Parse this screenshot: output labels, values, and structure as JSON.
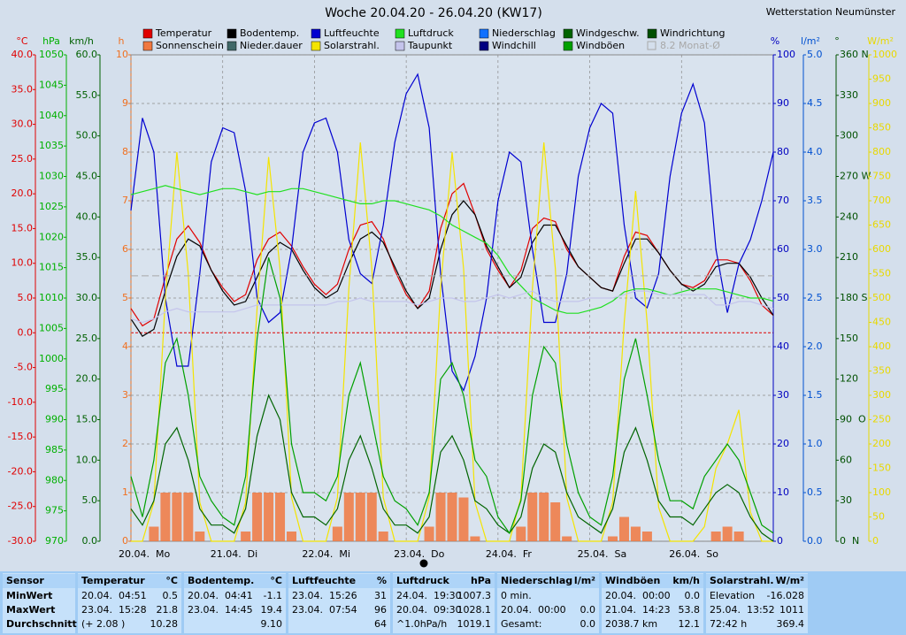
{
  "chart_data": {
    "type": "line",
    "title": "Woche 20.04.20 - 26.04.20 (KW17)",
    "subtitle": "Wetterstation Neumünster",
    "xlim": [
      0,
      168
    ],
    "xticks": [
      {
        "value": 0,
        "label": "20.04.  Mo"
      },
      {
        "value": 24,
        "label": "21.04.  Di"
      },
      {
        "value": 48,
        "label": "22.04.  Mi"
      },
      {
        "value": 72,
        "label": "23.04.  Do"
      },
      {
        "value": 96,
        "label": "24.04.  Fr"
      },
      {
        "value": 120,
        "label": "25.04.  Sa"
      },
      {
        "value": 144,
        "label": "26.04.  So"
      }
    ],
    "grid": true,
    "axes": [
      {
        "label": "°C",
        "color": "#e00000",
        "side": "left",
        "lim": [
          -30,
          40
        ],
        "ticks": [
          {
            "value": 40,
            "label": "40.0"
          },
          {
            "value": 35,
            "label": "35.0"
          },
          {
            "value": 30,
            "label": "30.0"
          },
          {
            "value": 25,
            "label": "25.0"
          },
          {
            "value": 20,
            "label": "20.0"
          },
          {
            "value": 15,
            "label": "15.0"
          },
          {
            "value": 10,
            "label": "10.0"
          },
          {
            "value": 5,
            "label": "5.0"
          },
          {
            "value": 0,
            "label": "0.0"
          },
          {
            "value": -5,
            "label": "-5.0"
          },
          {
            "value": -10,
            "label": "-10.0"
          },
          {
            "value": -15,
            "label": "-15.0"
          },
          {
            "value": -20,
            "label": "-20.0"
          },
          {
            "value": -25,
            "label": "-25.0"
          },
          {
            "value": -30,
            "label": "-30.0"
          }
        ]
      },
      {
        "label": "hPa",
        "color": "#00b000",
        "side": "left",
        "lim": [
          970,
          1050
        ],
        "ticks": [
          1050,
          1045,
          1040,
          1035,
          1030,
          1025,
          1020,
          1015,
          1010,
          1005,
          1000,
          995,
          990,
          985,
          980,
          975,
          970
        ]
      },
      {
        "label": "km/h",
        "color": "#006000",
        "side": "left",
        "lim": [
          0,
          60
        ],
        "ticks": [
          {
            "value": 60,
            "label": "60.0"
          },
          {
            "value": 55,
            "label": "55.0"
          },
          {
            "value": 50,
            "label": "50.0"
          },
          {
            "value": 45,
            "label": "45.0"
          },
          {
            "value": 40,
            "label": "40.0"
          },
          {
            "value": 35,
            "label": "35.0"
          },
          {
            "value": 30,
            "label": "30.0"
          },
          {
            "value": 25,
            "label": "25.0"
          },
          {
            "value": 20,
            "label": "20.0"
          },
          {
            "value": 15,
            "label": "15.0"
          },
          {
            "value": 10,
            "label": "10.0"
          },
          {
            "value": 5,
            "label": "5.0"
          },
          {
            "value": 0,
            "label": "0.0"
          }
        ]
      },
      {
        "label": "h",
        "color": "#f07020",
        "side": "left",
        "lim": [
          0,
          10
        ],
        "ticks": [
          10,
          9,
          8,
          7,
          6,
          5,
          4,
          3,
          2,
          1,
          0
        ]
      },
      {
        "label": "%",
        "color": "#0000c0",
        "side": "right",
        "lim": [
          0,
          100
        ],
        "ticks": [
          100,
          90,
          80,
          70,
          60,
          50,
          40,
          30,
          20,
          10,
          0
        ]
      },
      {
        "label": "l/m²",
        "color": "#0050d0",
        "side": "right",
        "lim": [
          0,
          5
        ],
        "ticks": [
          {
            "value": 5,
            "label": "5.0"
          },
          {
            "value": 4.5,
            "label": "4.5"
          },
          {
            "value": 4,
            "label": "4.0"
          },
          {
            "value": 3.5,
            "label": "3.5"
          },
          {
            "value": 3,
            "label": "3.0"
          },
          {
            "value": 2.5,
            "label": "2.5"
          },
          {
            "value": 2,
            "label": "2.0"
          },
          {
            "value": 1.5,
            "label": "1.5"
          },
          {
            "value": 1,
            "label": "1.0"
          },
          {
            "value": 0.5,
            "label": "0.5"
          },
          {
            "value": 0,
            "label": "0.0"
          }
        ]
      },
      {
        "label": "°",
        "color": "#005000",
        "side": "right",
        "lim": [
          0,
          360
        ],
        "ticks": [
          {
            "value": 360,
            "label": "360 N"
          },
          330,
          300,
          {
            "value": 270,
            "label": "270 W"
          },
          240,
          210,
          {
            "value": 180,
            "label": "180 S"
          },
          150,
          120,
          {
            "value": 90,
            "label": "90  O"
          },
          60,
          30,
          {
            "value": 0,
            "label": "0  N"
          }
        ]
      },
      {
        "label": "W/m²",
        "color": "#e8d800",
        "side": "right",
        "lim": [
          0,
          1000
        ],
        "ticks": [
          1000,
          950,
          900,
          850,
          800,
          750,
          700,
          650,
          600,
          550,
          500,
          450,
          400,
          350,
          300,
          250,
          200,
          150,
          100,
          50,
          0
        ]
      }
    ],
    "x": [
      0,
      3,
      6,
      9,
      12,
      15,
      18,
      21,
      24,
      27,
      30,
      33,
      36,
      39,
      42,
      45,
      48,
      51,
      54,
      57,
      60,
      63,
      66,
      69,
      72,
      75,
      78,
      81,
      84,
      87,
      90,
      93,
      96,
      99,
      102,
      105,
      108,
      111,
      114,
      117,
      120,
      123,
      126,
      129,
      132,
      135,
      138,
      141,
      144,
      147,
      150,
      153,
      156,
      159,
      162,
      165,
      168
    ],
    "series": [
      {
        "name": "Temperatur",
        "color": "#e00000",
        "axis": 0,
        "style": "line",
        "values": [
          3.5,
          1.0,
          2.0,
          8.0,
          13.5,
          15.4,
          13.0,
          9.0,
          6.5,
          4.5,
          5.5,
          10.5,
          13.5,
          14.5,
          12.5,
          9.5,
          7.0,
          5.5,
          7.0,
          12.0,
          15.5,
          16.0,
          13.5,
          9.0,
          5.5,
          3.5,
          6.0,
          15.0,
          20.0,
          21.5,
          17.0,
          12.0,
          9.0,
          6.5,
          9.0,
          15.0,
          16.5,
          16.0,
          12.0,
          9.5,
          8.0,
          6.5,
          6.0,
          11.0,
          14.5,
          14.0,
          11.5,
          9.0,
          7.0,
          6.5,
          7.5,
          10.5,
          10.5,
          10.0,
          7.5,
          4.0,
          2.5
        ]
      },
      {
        "name": "Sonnenschein",
        "color": "#f07840",
        "axis": 3,
        "style": "bar",
        "values": [
          0,
          0,
          0.3,
          1,
          1,
          1,
          0.2,
          0,
          0,
          0,
          0.2,
          1,
          1,
          1,
          0.2,
          0,
          0,
          0,
          0.3,
          1,
          1,
          1,
          0.2,
          0,
          0,
          0,
          0.3,
          1,
          1,
          0.9,
          0.1,
          0,
          0,
          0,
          0.3,
          1,
          1,
          0.8,
          0.1,
          0,
          0,
          0,
          0.1,
          0.5,
          0.3,
          0.2,
          0,
          0,
          0,
          0,
          0,
          0.2,
          0.3,
          0.2,
          0,
          0,
          0
        ]
      },
      {
        "name": "Bodentemp.",
        "color": "#000000",
        "axis": 0,
        "style": "line",
        "values": [
          2.0,
          -0.5,
          0.5,
          6,
          11,
          13.5,
          12.5,
          9,
          6,
          4,
          4.5,
          8,
          11.5,
          13,
          12,
          9,
          6.5,
          5,
          6,
          10,
          13.5,
          14.5,
          13,
          9.5,
          6,
          3.5,
          5,
          12,
          17,
          19,
          17,
          12.5,
          9.5,
          6.5,
          8,
          13,
          15.5,
          15.5,
          12.5,
          9.5,
          8,
          6.5,
          6,
          10,
          13.5,
          13.5,
          11.5,
          9,
          7,
          6,
          7,
          9.5,
          10,
          10,
          8,
          5,
          2.5
        ]
      },
      {
        "name": "Nieder.dauer",
        "color": "#406868"
      },
      {
        "name": "Luftfeuchte",
        "color": "#0000d0",
        "axis": 4,
        "style": "line",
        "values": [
          68,
          87,
          80,
          50,
          36,
          36,
          55,
          78,
          85,
          84,
          72,
          50,
          45,
          47,
          60,
          80,
          86,
          87,
          80,
          62,
          55,
          53,
          65,
          82,
          92,
          96,
          85,
          55,
          35,
          31,
          38,
          50,
          70,
          80,
          78,
          60,
          45,
          45,
          55,
          75,
          85,
          90,
          88,
          65,
          50,
          48,
          55,
          75,
          88,
          94,
          86,
          60,
          47,
          57,
          62,
          70,
          80
        ]
      },
      {
        "name": "Solarstrahl.",
        "color": "#f4e400",
        "axis": 7,
        "style": "line",
        "values": [
          0,
          0,
          80,
          500,
          800,
          550,
          80,
          0,
          0,
          0,
          80,
          480,
          790,
          560,
          90,
          0,
          0,
          0,
          90,
          520,
          820,
          560,
          90,
          0,
          0,
          0,
          90,
          520,
          800,
          560,
          80,
          0,
          0,
          0,
          90,
          520,
          820,
          560,
          90,
          0,
          0,
          0,
          80,
          450,
          720,
          450,
          70,
          0,
          0,
          0,
          30,
          150,
          200,
          270,
          60,
          0,
          0
        ]
      },
      {
        "name": "Luftdruck",
        "color": "#20e020",
        "axis": 1,
        "style": "line",
        "values": [
          1027.0,
          1027.5,
          1028.0,
          1028.5,
          1028.0,
          1027.5,
          1027.0,
          1027.5,
          1028.0,
          1028.0,
          1027.5,
          1027.0,
          1027.5,
          1027.5,
          1028.0,
          1028.0,
          1027.5,
          1027.0,
          1026.5,
          1026.0,
          1025.5,
          1025.5,
          1026.0,
          1026.0,
          1025.5,
          1025.0,
          1024.5,
          1023.5,
          1022.0,
          1021.0,
          1020.0,
          1019.0,
          1017.0,
          1014.0,
          1012.0,
          1010.0,
          1009.0,
          1008.0,
          1007.5,
          1007.5,
          1008.0,
          1008.5,
          1009.5,
          1011.0,
          1011.5,
          1011.5,
          1011.0,
          1010.5,
          1011.0,
          1011.5,
          1011.5,
          1011.5,
          1011.0,
          1010.5,
          1010.0,
          1010.0,
          1009.5
        ]
      },
      {
        "name": "Taupunkt",
        "color": "#c4c4ec",
        "axis": 0,
        "style": "line",
        "values": [
          2,
          1.5,
          2,
          3,
          3.5,
          3,
          3,
          3,
          3,
          3,
          3.5,
          4,
          4,
          4,
          4,
          4,
          4,
          4,
          4.5,
          4.5,
          5,
          4.5,
          4.5,
          4.5,
          4.5,
          4,
          4.5,
          5,
          5,
          4.5,
          4.5,
          5,
          5.5,
          5,
          5.5,
          6,
          5,
          4.5,
          4.5,
          4.5,
          5,
          5,
          5,
          5.5,
          6,
          6,
          5.5,
          5.5,
          5.5,
          5.5,
          5.5,
          4,
          4,
          4.5,
          4.5,
          4,
          3.5
        ]
      },
      {
        "name": "Niederschlag",
        "color": "#1070ff"
      },
      {
        "name": "Windchill",
        "color": "#000080"
      },
      {
        "name": "Windgeschw.",
        "color": "#006400",
        "axis": 2,
        "style": "line",
        "values": [
          4,
          2,
          5,
          12,
          14,
          10,
          4,
          2,
          2,
          1,
          4,
          13,
          18,
          15,
          6,
          3,
          3,
          2,
          4,
          10,
          13,
          9,
          4,
          2,
          2,
          1,
          3,
          11,
          13,
          10,
          5,
          4,
          2,
          1,
          3,
          9,
          12,
          11,
          6,
          3,
          2,
          1,
          4,
          11,
          14,
          10,
          5,
          3,
          3,
          2,
          4,
          6,
          7,
          6,
          3,
          1,
          0
        ]
      },
      {
        "name": "Windböen",
        "color": "#00a000",
        "axis": 2,
        "style": "line",
        "values": [
          8,
          3,
          10,
          22,
          25,
          18,
          8,
          5,
          3,
          2,
          8,
          25,
          35,
          30,
          12,
          6,
          6,
          5,
          8,
          18,
          22,
          15,
          8,
          5,
          4,
          2,
          6,
          20,
          22,
          18,
          10,
          8,
          3,
          1,
          5,
          18,
          24,
          22,
          12,
          6,
          3,
          2,
          8,
          20,
          25,
          18,
          10,
          5,
          5,
          4,
          8,
          10,
          12,
          10,
          6,
          2,
          1
        ]
      },
      {
        "name": "Windrichtung",
        "color": "#005000"
      },
      {
        "name": "8.2 Monat-Ø",
        "color": "#a8a8a8",
        "axis": 0,
        "style": "dashed",
        "value": 8.2,
        "checkbox": true
      }
    ]
  },
  "table": {
    "columns": [
      {
        "name": "Sensor",
        "rows": [
          [
            "MinWert",
            null
          ],
          [
            "MaxWert",
            null
          ],
          [
            "Durchschnitt",
            null
          ]
        ]
      },
      {
        "name": "Temperatur",
        "unit": "°C",
        "rows": [
          [
            "20.04.  04:51",
            "0.5"
          ],
          [
            "23.04.  15:28",
            "21.8"
          ],
          [
            "(+ 2.08 )",
            "10.28"
          ]
        ]
      },
      {
        "name": "Bodentemp.",
        "unit": "°C",
        "rows": [
          [
            "20.04.  04:41",
            "-1.1"
          ],
          [
            "23.04.  14:45",
            "19.4"
          ],
          [
            null,
            "9.10"
          ]
        ]
      },
      {
        "name": "Luftfeuchte",
        "unit": "%",
        "rows": [
          [
            "23.04.  15:26",
            "31"
          ],
          [
            "23.04.  07:54",
            "96"
          ],
          [
            null,
            "64"
          ]
        ]
      },
      {
        "name": "Luftdruck",
        "unit": "hPa",
        "rows": [
          [
            "24.04.  19:30",
            "1007.3"
          ],
          [
            "20.04.  09:30",
            "1028.1"
          ],
          [
            "^1.0hPa/h",
            "1019.1"
          ]
        ]
      },
      {
        "name": "Niederschlag",
        "unit": "l/m²",
        "rows": [
          [
            "0 min.",
            null
          ],
          [
            "20.04.  00:00",
            "0.0"
          ],
          [
            "Gesamt:",
            "0.0"
          ]
        ]
      },
      {
        "name": "Windböen",
        "unit": "km/h",
        "rows": [
          [
            "20.04.  00:00",
            "0.0"
          ],
          [
            "21.04.  14:23",
            "53.8"
          ],
          [
            "2038.7 km",
            "12.1"
          ]
        ]
      },
      {
        "name": "Solarstrahl.",
        "unit": "W/m²",
        "rows": [
          [
            "Elevation",
            "-16.028"
          ],
          [
            "25.04.  13:52",
            "1011"
          ],
          [
            "72:42 h",
            "369.4"
          ]
        ]
      }
    ]
  }
}
